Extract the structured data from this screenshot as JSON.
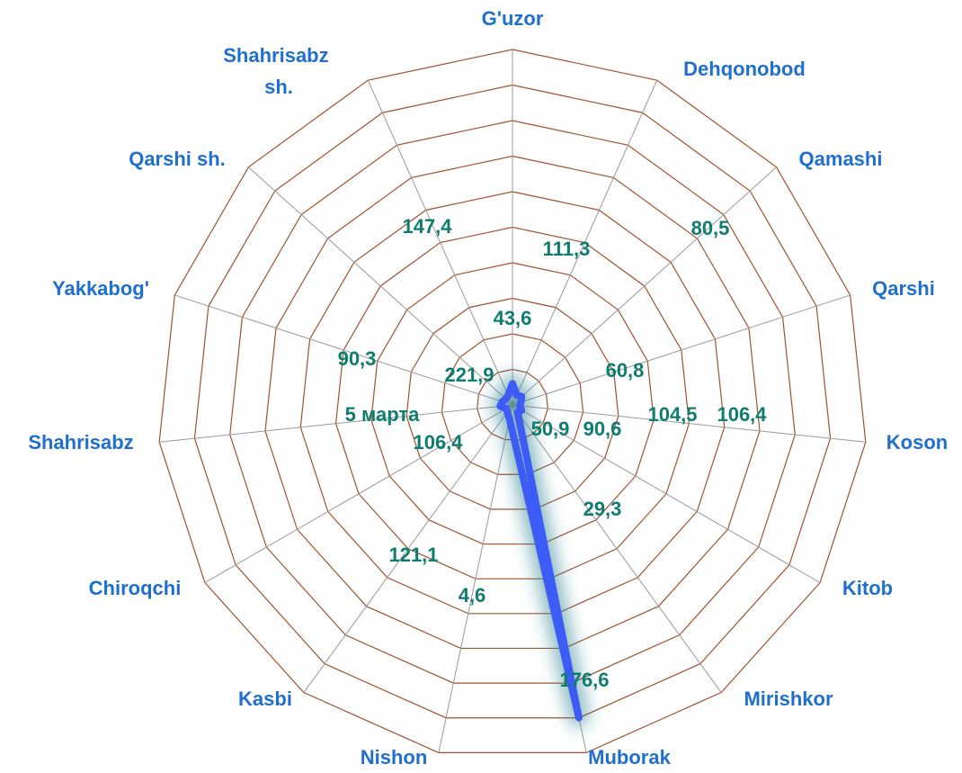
{
  "chart_data": {
    "type": "radar",
    "categories": [
      "G'uzor",
      "Dehqonobod",
      "Qamashi",
      "Qarshi",
      "Koson",
      "Kitob",
      "Mirishkor",
      "Muborak",
      "Nishon",
      "Kasbi",
      "Chiroqchi",
      "Shahrisabz",
      "Yakkabog'",
      "Qarshi sh.",
      "Shahrisabz sh."
    ],
    "series": [
      {
        "color": "#3d5cf5",
        "values": [
          60,
          30,
          35,
          25,
          20,
          30,
          25,
          900,
          40,
          25,
          20,
          35,
          30,
          25,
          30
        ]
      }
    ],
    "ylim": [
      0,
      1000
    ],
    "yticks": [
      100,
      200,
      300,
      400,
      500,
      600,
      700,
      800,
      900,
      1000
    ],
    "grid": true,
    "annotations": [
      "43,6",
      "111,3",
      "80,5",
      "60,8",
      "104,5",
      "106,4",
      "50,9",
      "90,6",
      "29,3",
      "176,6",
      "4,6",
      "121,1",
      "106,4",
      "5 марта",
      "90,3",
      "147,4",
      "221,9"
    ]
  }
}
